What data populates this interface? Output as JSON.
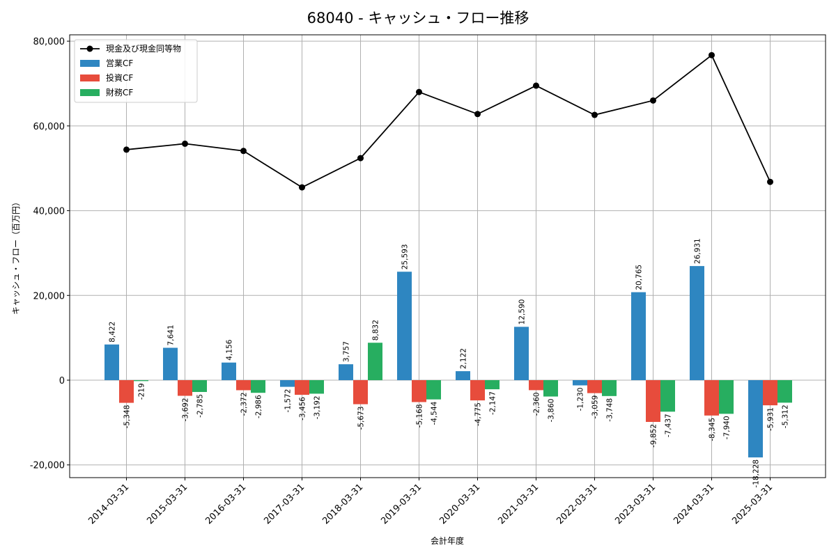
{
  "chart_data": {
    "type": "bar",
    "title": "68040 - キャッシュ・フロー推移",
    "xlabel": "会計年度",
    "ylabel": "キャッシュ・フロー（百万円）",
    "categories": [
      "2014-03-31",
      "2015-03-31",
      "2016-03-31",
      "2017-03-31",
      "2018-03-31",
      "2019-03-31",
      "2020-03-31",
      "2021-03-31",
      "2022-03-31",
      "2023-03-31",
      "2024-03-31",
      "2025-03-31"
    ],
    "ylim": [
      -23000,
      81500
    ],
    "yticks": [
      -20000,
      0,
      20000,
      40000,
      60000,
      80000
    ],
    "ytick_labels": [
      "-20,000",
      "0",
      "20,000",
      "40,000",
      "60,000",
      "80,000"
    ],
    "grid": true,
    "legend_position": "top-left",
    "series": [
      {
        "name": "営業CF",
        "kind": "bar",
        "color": "#2e86c1",
        "values": [
          8422,
          7641,
          4156,
          -1572,
          3757,
          25593,
          2122,
          12590,
          -1230,
          20765,
          26931,
          -18228
        ],
        "labels": [
          "8,422",
          "7,641",
          "4,156",
          "-1,572",
          "3,757",
          "25,593",
          "2,122",
          "12,590",
          "-1,230",
          "20,765",
          "26,931",
          "-18,228"
        ]
      },
      {
        "name": "投資CF",
        "kind": "bar",
        "color": "#e74c3c",
        "values": [
          -5348,
          -3692,
          -2372,
          -3456,
          -5673,
          -5168,
          -4775,
          -2360,
          -3059,
          -9852,
          -8345,
          -5931
        ],
        "labels": [
          "-5,348",
          "-3,692",
          "-2,372",
          "-3,456",
          "-5,673",
          "-5,168",
          "-4,775",
          "-2,360",
          "-3,059",
          "-9,852",
          "-8,345",
          "-5,931"
        ]
      },
      {
        "name": "財務CF",
        "kind": "bar",
        "color": "#27ae60",
        "values": [
          -219,
          -2785,
          -2986,
          -3192,
          8832,
          -4544,
          -2147,
          -3860,
          -3748,
          -7437,
          -7940,
          -5312
        ],
        "labels": [
          "-219",
          "-2,785",
          "-2,986",
          "-3,192",
          "8,832",
          "-4,544",
          "-2,147",
          "-3,860",
          "-3,748",
          "-7,437",
          "-7,940",
          "-5,312"
        ]
      },
      {
        "name": "現金及び現金同等物",
        "kind": "line",
        "color": "#000000",
        "values": [
          54400,
          55800,
          54100,
          45500,
          52400,
          68000,
          62800,
          69500,
          62600,
          66000,
          76700,
          46800
        ]
      }
    ]
  }
}
